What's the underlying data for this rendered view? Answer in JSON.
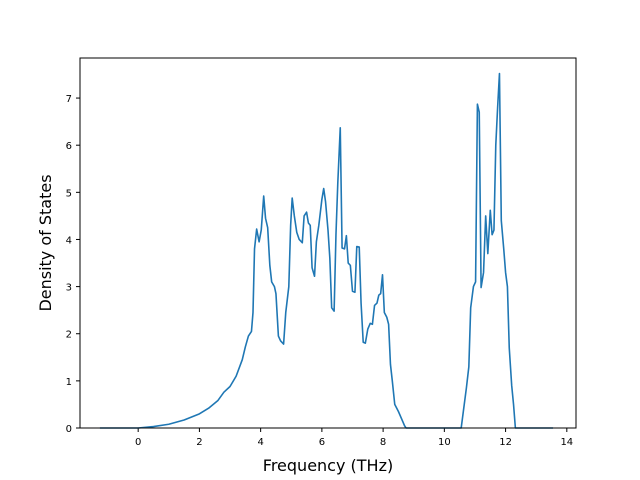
{
  "chart_data": {
    "type": "line",
    "title": "",
    "xlabel": "Frequency (THz)",
    "ylabel": "Density of States",
    "xlim": [
      -1.9,
      14.3
    ],
    "ylim": [
      0,
      7.85
    ],
    "xticks": [
      0,
      2,
      4,
      6,
      8,
      10,
      12,
      14
    ],
    "yticks": [
      0,
      1,
      2,
      3,
      4,
      5,
      6,
      7
    ],
    "grid": false,
    "legend": "none",
    "series": [
      {
        "name": "",
        "color": "#1f77b4",
        "points": [
          [
            -1.25,
            0
          ],
          [
            0.0,
            0.0
          ],
          [
            0.5,
            0.03
          ],
          [
            1.0,
            0.08
          ],
          [
            1.5,
            0.17
          ],
          [
            2.0,
            0.3
          ],
          [
            2.3,
            0.42
          ],
          [
            2.6,
            0.58
          ],
          [
            2.8,
            0.76
          ],
          [
            3.0,
            0.88
          ],
          [
            3.2,
            1.1
          ],
          [
            3.4,
            1.45
          ],
          [
            3.5,
            1.72
          ],
          [
            3.6,
            1.95
          ],
          [
            3.7,
            2.05
          ],
          [
            3.75,
            2.45
          ],
          [
            3.8,
            3.8
          ],
          [
            3.87,
            4.22
          ],
          [
            3.95,
            3.95
          ],
          [
            4.02,
            4.2
          ],
          [
            4.1,
            4.92
          ],
          [
            4.16,
            4.45
          ],
          [
            4.23,
            4.25
          ],
          [
            4.3,
            3.45
          ],
          [
            4.36,
            3.1
          ],
          [
            4.45,
            3.0
          ],
          [
            4.5,
            2.85
          ],
          [
            4.58,
            1.95
          ],
          [
            4.65,
            1.85
          ],
          [
            4.75,
            1.78
          ],
          [
            4.82,
            2.45
          ],
          [
            4.92,
            3.0
          ],
          [
            4.98,
            4.3
          ],
          [
            5.03,
            4.88
          ],
          [
            5.1,
            4.5
          ],
          [
            5.18,
            4.15
          ],
          [
            5.26,
            4.0
          ],
          [
            5.36,
            3.93
          ],
          [
            5.42,
            4.5
          ],
          [
            5.5,
            4.58
          ],
          [
            5.56,
            4.35
          ],
          [
            5.62,
            4.3
          ],
          [
            5.68,
            3.4
          ],
          [
            5.76,
            3.22
          ],
          [
            5.82,
            3.95
          ],
          [
            5.9,
            4.3
          ],
          [
            6.0,
            4.85
          ],
          [
            6.06,
            5.08
          ],
          [
            6.12,
            4.8
          ],
          [
            6.2,
            4.2
          ],
          [
            6.26,
            3.6
          ],
          [
            6.32,
            2.55
          ],
          [
            6.4,
            2.48
          ],
          [
            6.46,
            4.1
          ],
          [
            6.52,
            5.2
          ],
          [
            6.6,
            6.37
          ],
          [
            6.66,
            3.82
          ],
          [
            6.74,
            3.8
          ],
          [
            6.8,
            4.08
          ],
          [
            6.86,
            3.5
          ],
          [
            6.93,
            3.45
          ],
          [
            7.0,
            2.9
          ],
          [
            7.08,
            2.88
          ],
          [
            7.14,
            3.85
          ],
          [
            7.22,
            3.84
          ],
          [
            7.28,
            2.65
          ],
          [
            7.35,
            1.82
          ],
          [
            7.42,
            1.8
          ],
          [
            7.5,
            2.1
          ],
          [
            7.58,
            2.22
          ],
          [
            7.65,
            2.2
          ],
          [
            7.72,
            2.6
          ],
          [
            7.8,
            2.65
          ],
          [
            7.86,
            2.82
          ],
          [
            7.92,
            2.85
          ],
          [
            7.98,
            3.25
          ],
          [
            8.04,
            2.45
          ],
          [
            8.12,
            2.35
          ],
          [
            8.18,
            2.2
          ],
          [
            8.24,
            1.35
          ],
          [
            8.3,
            1.0
          ],
          [
            8.38,
            0.5
          ],
          [
            8.5,
            0.35
          ],
          [
            8.6,
            0.2
          ],
          [
            8.7,
            0.05
          ],
          [
            8.75,
            0.0
          ],
          [
            10.55,
            0.0
          ],
          [
            10.62,
            0.35
          ],
          [
            10.72,
            0.85
          ],
          [
            10.8,
            1.3
          ],
          [
            10.86,
            2.55
          ],
          [
            10.95,
            3.0
          ],
          [
            11.02,
            3.1
          ],
          [
            11.08,
            6.87
          ],
          [
            11.14,
            6.7
          ],
          [
            11.2,
            2.98
          ],
          [
            11.28,
            3.3
          ],
          [
            11.35,
            4.5
          ],
          [
            11.42,
            3.7
          ],
          [
            11.5,
            4.62
          ],
          [
            11.56,
            4.1
          ],
          [
            11.62,
            4.2
          ],
          [
            11.68,
            6.0
          ],
          [
            11.74,
            6.8
          ],
          [
            11.8,
            7.52
          ],
          [
            11.86,
            4.4
          ],
          [
            11.94,
            3.8
          ],
          [
            12.0,
            3.3
          ],
          [
            12.06,
            3.0
          ],
          [
            12.12,
            1.7
          ],
          [
            12.2,
            0.9
          ],
          [
            12.26,
            0.5
          ],
          [
            12.32,
            0.0
          ],
          [
            13.55,
            0.0
          ]
        ]
      }
    ]
  }
}
